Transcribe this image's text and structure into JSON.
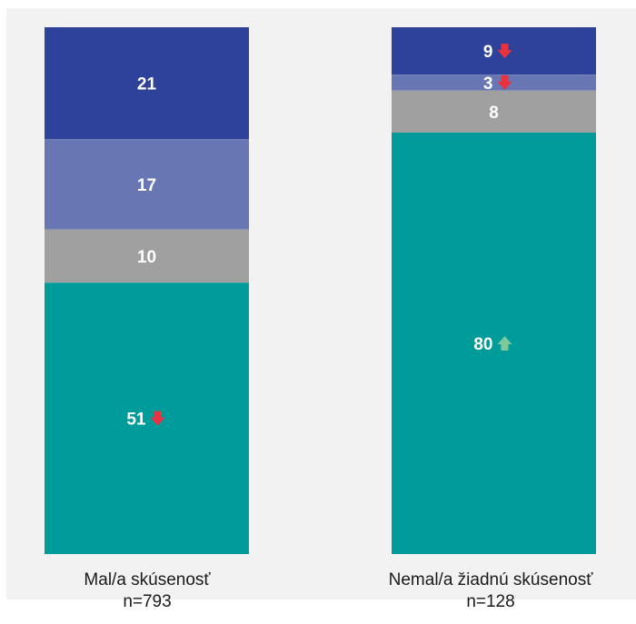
{
  "chart_data": {
    "type": "bar",
    "stacked": true,
    "percent": true,
    "categories": [
      "Mal/a skúsenosť",
      "Nemal/a žiadnú skúsenosť"
    ],
    "sample_sizes": [
      "n=793",
      "n=128"
    ],
    "series": [
      {
        "values": [
          21,
          9
        ],
        "color": "#2e4299",
        "arrows": [
          "",
          "down"
        ]
      },
      {
        "values": [
          17,
          3
        ],
        "color": "#6877b4",
        "arrows": [
          "",
          "down"
        ]
      },
      {
        "values": [
          10,
          8
        ],
        "color": "#a0a0a0",
        "arrows": [
          "",
          ""
        ]
      },
      {
        "values": [
          51,
          80
        ],
        "color": "#009b9b",
        "arrows": [
          "down",
          "up"
        ]
      }
    ],
    "arrow_colors": {
      "down": "#e8323e",
      "up": "#7ec89a"
    },
    "legend": "none",
    "grid": false
  }
}
